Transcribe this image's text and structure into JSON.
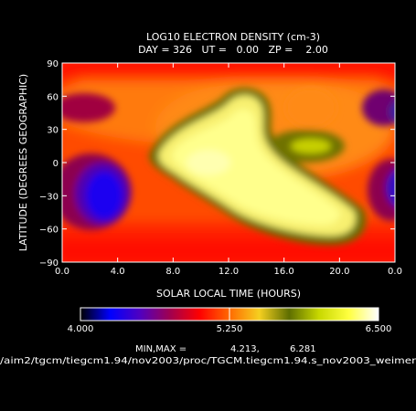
{
  "chart_data": {
    "type": "heatmap",
    "title": "LOG10 ELECTRON DENSITY (cm-3)",
    "subtitle": "DAY = 326   UT =   0.00   ZP =    2.00",
    "xlabel": "SOLAR LOCAL TIME (HOURS)",
    "ylabel": "LATITUDE (DEGREES GEOGRAPHIC)",
    "x_ticks": [
      "0.0",
      "4.0",
      "8.0",
      "12.0",
      "16.0",
      "20.0",
      "0.0"
    ],
    "y_ticks": [
      "90",
      "60",
      "30",
      "0",
      "−30",
      "−60",
      "−90"
    ],
    "xlim": [
      0,
      24
    ],
    "ylim": [
      -90,
      90
    ],
    "colorbar": {
      "min_label": "4.000",
      "mid_label": "5.250",
      "max_label": "6.500",
      "range": [
        4.0,
        6.5
      ],
      "colors": [
        "#000000",
        "#0000ff",
        "#5000c0",
        "#a00050",
        "#ff0000",
        "#ff6a00",
        "#f5d020",
        "#5e6e00",
        "#c8d800",
        "#ffff40",
        "#ffffff"
      ]
    },
    "minmax": {
      "label": "MIN,MAX =",
      "min_value": "4.213,",
      "max_value": "6.281"
    },
    "footer_path": "/aim2/tgcm/tiegcm1.94/nov2003/proc/TGCM.tiegcm1.94.s_nov2003_weimer",
    "field_min": 4.213,
    "field_max": 6.281
  }
}
